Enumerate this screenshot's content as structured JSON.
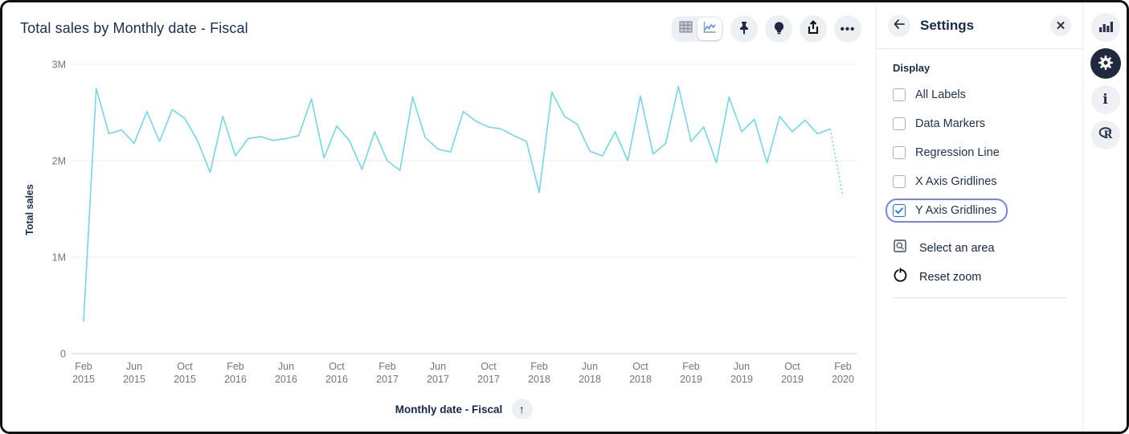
{
  "window": {
    "title": "Total sales by Monthly date - Fiscal"
  },
  "toolbar": {
    "view_toggle": {
      "options": [
        "table-view-icon",
        "chart-view-icon"
      ],
      "active_view": "chart"
    },
    "buttons": [
      "pin-icon",
      "lightbulb-icon",
      "share-icon",
      "ellipsis-icon"
    ]
  },
  "chart_data": {
    "type": "line",
    "title": "Total sales by Monthly date - Fiscal",
    "xlabel": "Monthly date - Fiscal",
    "ylabel": "Total sales",
    "units": "millions",
    "ylim": [
      0,
      3000000
    ],
    "grid": "y-gridlines-only",
    "legend": false,
    "line_color": "#74d6e6",
    "last_segment_style": "dashed",
    "y_ticks": [
      {
        "value_millions": 3,
        "label": "3M"
      },
      {
        "value_millions": 2,
        "label": "2M"
      },
      {
        "value_millions": 1,
        "label": "1M"
      },
      {
        "value_millions": 0,
        "label": "0"
      }
    ],
    "x_tick_labels": [
      "Feb 2015",
      "Jun 2015",
      "Oct 2015",
      "Feb 2016",
      "Jun 2016",
      "Oct 2016",
      "Feb 2017",
      "Jun 2017",
      "Oct 2017",
      "Feb 2018",
      "Jun 2018",
      "Oct 2018",
      "Feb 2019",
      "Jun 2019",
      "Oct 2019",
      "Feb 2020"
    ],
    "x": [
      "Feb 2015",
      "Mar 2015",
      "Apr 2015",
      "May 2015",
      "Jun 2015",
      "Jul 2015",
      "Aug 2015",
      "Sep 2015",
      "Oct 2015",
      "Nov 2015",
      "Dec 2015",
      "Jan 2016",
      "Feb 2016",
      "Mar 2016",
      "Apr 2016",
      "May 2016",
      "Jun 2016",
      "Jul 2016",
      "Aug 2016",
      "Sep 2016",
      "Oct 2016",
      "Nov 2016",
      "Dec 2016",
      "Jan 2017",
      "Feb 2017",
      "Mar 2017",
      "Apr 2017",
      "May 2017",
      "Jun 2017",
      "Jul 2017",
      "Aug 2017",
      "Sep 2017",
      "Oct 2017",
      "Nov 2017",
      "Dec 2017",
      "Jan 2018",
      "Feb 2018",
      "Mar 2018",
      "Apr 2018",
      "May 2018",
      "Jun 2018",
      "Jul 2018",
      "Aug 2018",
      "Sep 2018",
      "Oct 2018",
      "Nov 2018",
      "Dec 2018",
      "Jan 2019",
      "Feb 2019",
      "Mar 2019",
      "Apr 2019",
      "May 2019",
      "Jun 2019",
      "Jul 2019",
      "Aug 2019",
      "Sep 2019",
      "Oct 2019",
      "Nov 2019",
      "Dec 2019",
      "Jan 2020",
      "Feb 2020"
    ],
    "values_millions": [
      0.33,
      2.75,
      2.28,
      2.32,
      2.18,
      2.51,
      2.2,
      2.53,
      2.44,
      2.21,
      1.88,
      2.46,
      2.05,
      2.23,
      2.25,
      2.21,
      2.23,
      2.26,
      2.64,
      2.03,
      2.36,
      2.21,
      1.91,
      2.3,
      2.0,
      1.9,
      2.66,
      2.24,
      2.12,
      2.09,
      2.51,
      2.41,
      2.35,
      2.33,
      2.26,
      2.2,
      1.67,
      2.71,
      2.46,
      2.38,
      2.1,
      2.05,
      2.3,
      2.0,
      2.67,
      2.07,
      2.18,
      2.77,
      2.2,
      2.35,
      1.98,
      2.66,
      2.3,
      2.43,
      1.98,
      2.46,
      2.3,
      2.42,
      2.28,
      2.33,
      1.63
    ]
  },
  "x_axis_button": {
    "icon": "arrow-up-icon"
  },
  "settings_panel": {
    "back_icon": "arrow-left-icon",
    "title": "Settings",
    "close_icon": "close-icon",
    "section_title": "Display",
    "checkboxes": [
      {
        "label": "All Labels",
        "checked": false
      },
      {
        "label": "Data Markers",
        "checked": false
      },
      {
        "label": "Regression Line",
        "checked": false
      },
      {
        "label": "X Axis Gridlines",
        "checked": false
      },
      {
        "label": "Y Axis Gridlines",
        "checked": true,
        "focused": true
      }
    ],
    "actions": [
      {
        "label": "Select an area",
        "icon": "area-select-icon"
      },
      {
        "label": "Reset zoom",
        "icon": "reset-zoom-icon"
      }
    ]
  },
  "side_rail": {
    "items": [
      {
        "icon": "bar-chart-icon",
        "active": false
      },
      {
        "icon": "gear-icon",
        "active": true
      },
      {
        "icon": "info-icon",
        "active": false
      },
      {
        "icon": "r-logo-icon",
        "active": false
      }
    ]
  },
  "colors": {
    "accent_line": "#74d6e6",
    "navy_text": "#1c2d4f",
    "focus_ring": "#7b82ee",
    "checkbox_checked": "#1a73e8",
    "icon_circle_bg": "#eef0f3",
    "active_icon_bg": "#202940",
    "gridline": "#e8e8e8"
  }
}
